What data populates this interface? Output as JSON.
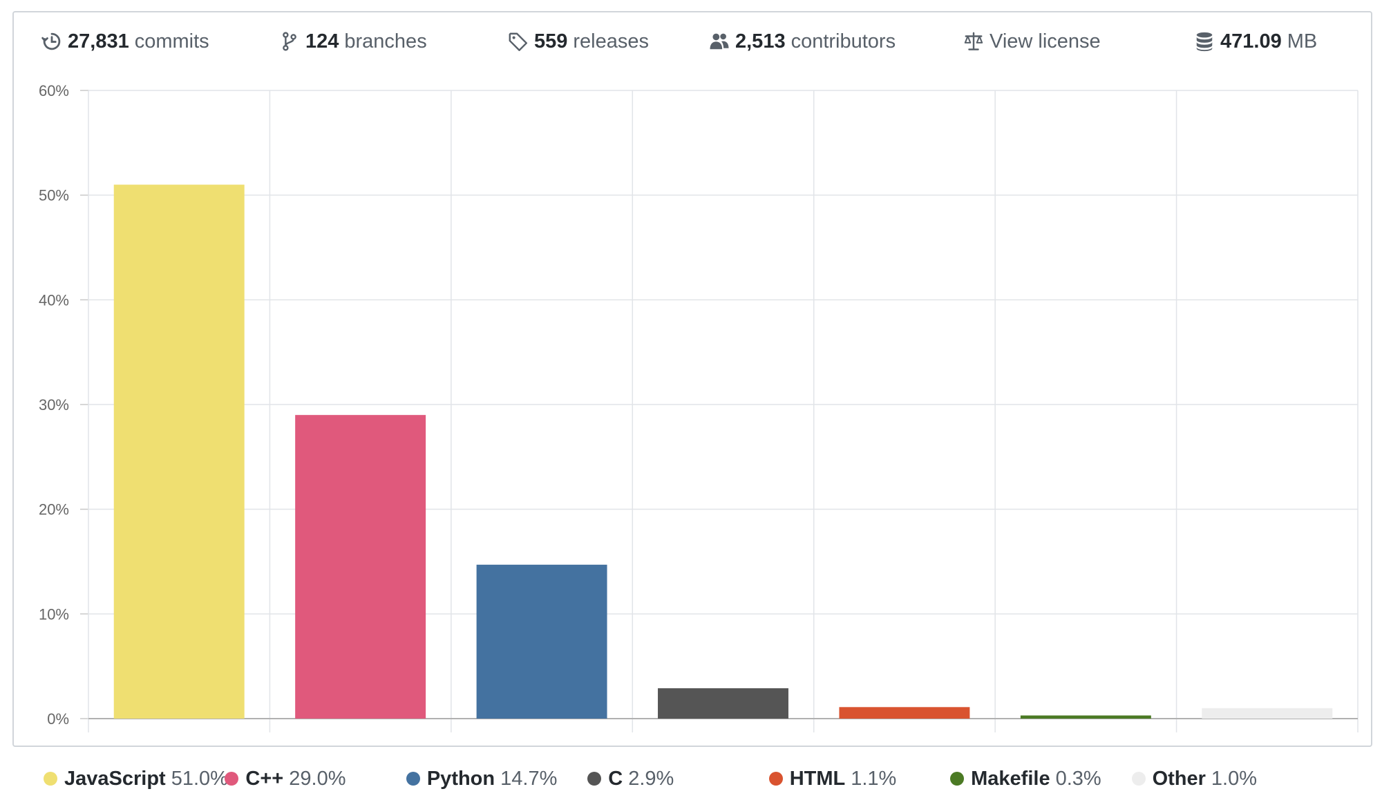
{
  "stats": {
    "commits": {
      "value": "27,831",
      "label": "commits",
      "icon": "history-icon"
    },
    "branches": {
      "value": "124",
      "label": "branches",
      "icon": "git-branch-icon"
    },
    "releases": {
      "value": "559",
      "label": "releases",
      "icon": "tag-icon"
    },
    "contributors": {
      "value": "2,513",
      "label": "contributors",
      "icon": "people-icon"
    },
    "license": {
      "label": "View license",
      "icon": "law-icon"
    },
    "size": {
      "value": "471.09",
      "label": "MB",
      "icon": "database-icon"
    }
  },
  "chart_data": {
    "type": "bar",
    "categories": [
      "JavaScript",
      "C++",
      "Python",
      "C",
      "HTML",
      "Makefile",
      "Other"
    ],
    "values": [
      51.0,
      29.0,
      14.7,
      2.9,
      1.1,
      0.3,
      1.0
    ],
    "colors": [
      "#efdf71",
      "#e0597c",
      "#4472a0",
      "#555555",
      "#d9532f",
      "#4b7a24",
      "#ededed"
    ],
    "y_ticks": [
      "0%",
      "10%",
      "20%",
      "30%",
      "40%",
      "50%",
      "60%"
    ],
    "ylim": [
      0,
      60
    ],
    "grid": true
  },
  "legend": [
    {
      "name": "JavaScript",
      "pct": "51.0%",
      "color": "#efdf71"
    },
    {
      "name": "C++",
      "pct": "29.0%",
      "color": "#e0597c"
    },
    {
      "name": "Python",
      "pct": "14.7%",
      "color": "#4472a0"
    },
    {
      "name": "C",
      "pct": "2.9%",
      "color": "#555555"
    },
    {
      "name": "HTML",
      "pct": "1.1%",
      "color": "#d9532f"
    },
    {
      "name": "Makefile",
      "pct": "0.3%",
      "color": "#4b7a24"
    },
    {
      "name": "Other",
      "pct": "1.0%",
      "color": "#ededed"
    }
  ]
}
